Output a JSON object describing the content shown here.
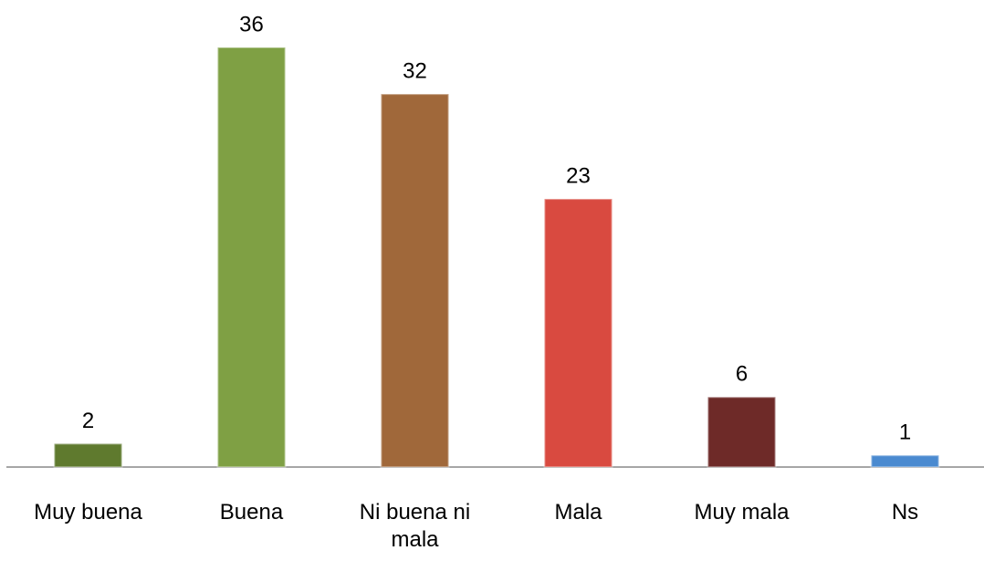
{
  "chart_data": {
    "type": "bar",
    "categories": [
      "Muy buena",
      "Buena",
      "Ni buena ni mala",
      "Mala",
      "Muy mala",
      "Ns"
    ],
    "values": [
      2,
      36,
      32,
      23,
      6,
      1
    ],
    "colors": [
      "#5f7a2e",
      "#7fa044",
      "#a0683a",
      "#d94a40",
      "#6e2a28",
      "#4a8ad0"
    ]
  }
}
